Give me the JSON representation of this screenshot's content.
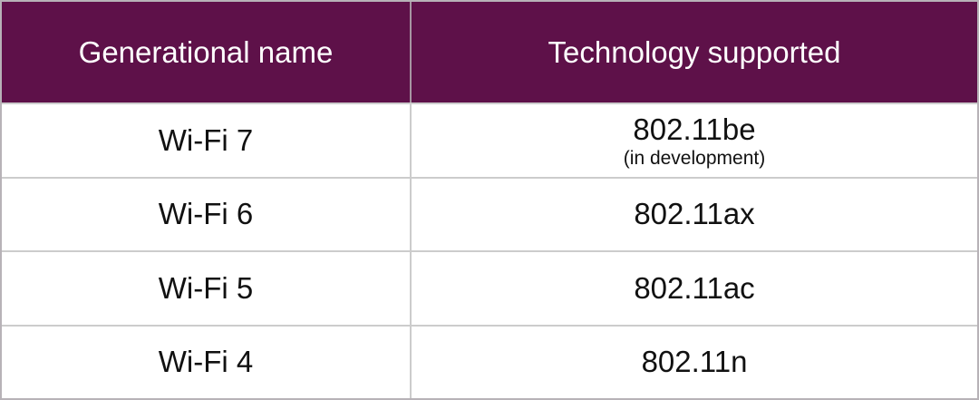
{
  "chart_data": {
    "type": "table",
    "columns": [
      "Generational name",
      "Technology supported"
    ],
    "rows": [
      [
        "Wi-Fi 7",
        "802.11be (in development)"
      ],
      [
        "Wi-Fi 6",
        "802.11ax"
      ],
      [
        "Wi-Fi 5",
        "802.11ac"
      ],
      [
        "Wi-Fi 4",
        "802.11n"
      ]
    ]
  },
  "table": {
    "header": {
      "generation": "Generational name",
      "technology": "Technology supported"
    },
    "rows": [
      {
        "generation": "Wi-Fi 7",
        "technology": "802.11be",
        "note": "(in development)"
      },
      {
        "generation": "Wi-Fi 6",
        "technology": "802.11ax"
      },
      {
        "generation": "Wi-Fi 5",
        "technology": "802.11ac"
      },
      {
        "generation": "Wi-Fi 4",
        "technology": "802.11n"
      }
    ],
    "colors": {
      "header_bg": "#5e1149",
      "header_text": "#ffffff",
      "body_text": "#111111",
      "grid_line": "#cccccc",
      "outer_border": "#b7b2b7",
      "header_divider": "#a795a2"
    }
  }
}
